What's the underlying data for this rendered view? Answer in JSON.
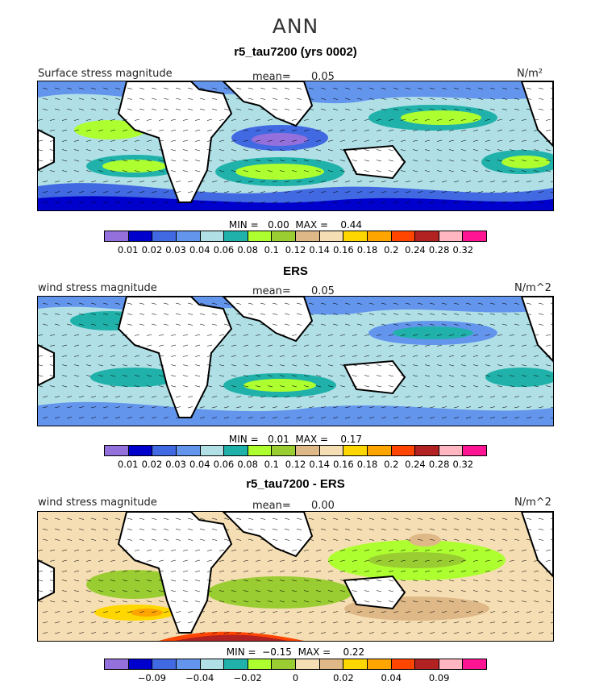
{
  "figure": {
    "title": "ANN"
  },
  "colors": {
    "abs_scale": [
      "#9370db",
      "#0000cd",
      "#4169e1",
      "#6495ed",
      "#b0e0e6",
      "#20b2aa",
      "#adff2f",
      "#9acd32",
      "#deb887",
      "#f5deb3",
      "#ffd700",
      "#ffa500",
      "#ff4500",
      "#b22222",
      "#ffb6c1",
      "#ff1493"
    ],
    "diff_scale": [
      "#9370db",
      "#0000cd",
      "#4169e1",
      "#6495ed",
      "#b0e0e6",
      "#20b2aa",
      "#adff2f",
      "#9acd32",
      "#f5deb3",
      "#deb887",
      "#ffd700",
      "#ffa500",
      "#ff4500",
      "#b22222",
      "#ffb6c1",
      "#ff1493"
    ]
  },
  "panels": [
    {
      "title": "r5_tau7200 (yrs 0002)",
      "left_label": "Surface stress magnitude",
      "mean_label": "mean=",
      "mean_value": "0.05",
      "units": "N/m²",
      "minmax": "MIN =   0.00  MAX =    0.44",
      "ticks": [
        "0.01",
        "0.02",
        "0.03",
        "0.04",
        "0.06",
        "0.08",
        "0.1",
        "0.12",
        "0.14",
        "0.16",
        "0.18",
        "0.2",
        "0.24",
        "0.28",
        "0.32"
      ]
    },
    {
      "title": "ERS",
      "left_label": "wind stress magnitude",
      "mean_label": "mean=",
      "mean_value": "0.05",
      "units": "N/m^2",
      "minmax": "MIN =   0.01  MAX =    0.17",
      "ticks": [
        "0.01",
        "0.02",
        "0.03",
        "0.04",
        "0.06",
        "0.08",
        "0.1",
        "0.12",
        "0.14",
        "0.16",
        "0.18",
        "0.2",
        "0.24",
        "0.28",
        "0.32"
      ]
    },
    {
      "title": "r5_tau7200 - ERS",
      "left_label": "wind stress magnitude",
      "mean_label": "mean=",
      "mean_value": "0.00",
      "units": "N/m^2",
      "minmax": "MIN =  −0.15  MAX =    0.22",
      "ticks": [
        "",
        "−0.09",
        "",
        "−0.04",
        "",
        "−0.02",
        "",
        "0",
        "",
        "0.02",
        "",
        "0.04",
        "",
        "0.09",
        ""
      ]
    }
  ]
}
